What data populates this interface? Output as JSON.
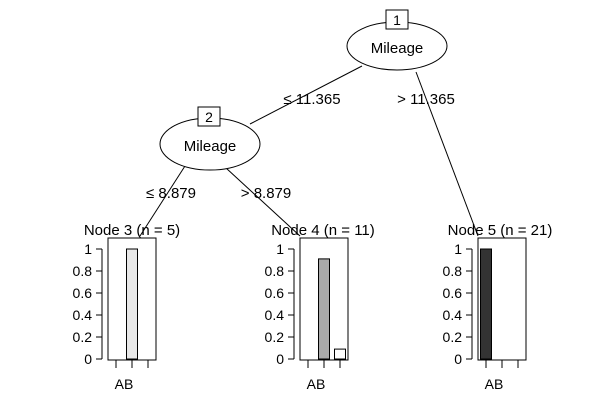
{
  "tree": {
    "root": {
      "id": "1",
      "label": "Mileage"
    },
    "inner": {
      "id": "2",
      "label": "Mileage"
    },
    "edges": {
      "root_left": "≤ 11.365",
      "root_right": "> 11.365",
      "inner_left": "≤ 8.879",
      "inner_right": "> 8.879"
    },
    "leaves": [
      {
        "title": "Node 3 (n = 5)",
        "values": [
          0,
          1,
          0
        ],
        "fill": "#e8e8e8"
      },
      {
        "title": "Node 4 (n = 11)",
        "values": [
          0,
          0.91,
          0.09
        ],
        "fill": "#aaaaaa"
      },
      {
        "title": "Node 5 (n = 21)",
        "values": [
          1,
          0,
          0
        ],
        "fill": "#333333"
      }
    ],
    "y_ticks": [
      "1",
      "0.8",
      "0.6",
      "0.4",
      "0.2",
      "0"
    ],
    "category_label": "AB"
  }
}
